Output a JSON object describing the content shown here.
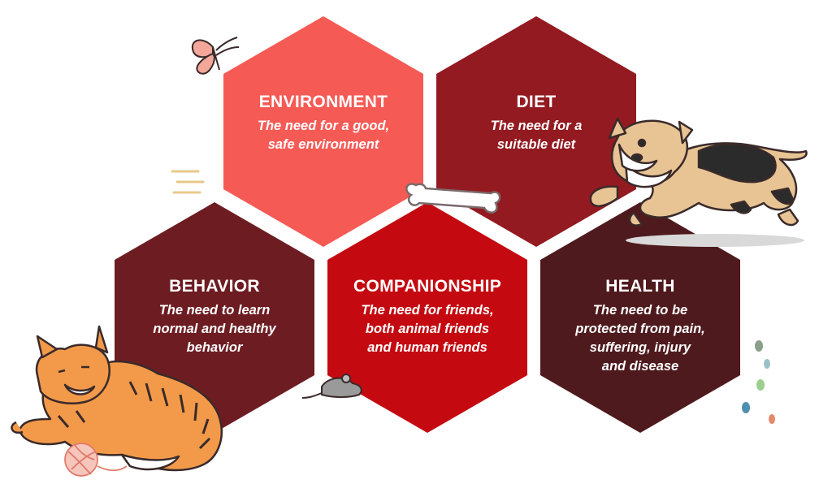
{
  "hexagons": [
    {
      "id": "environment",
      "title": "ENVIRONMENT",
      "description": "The need for a good,\nsafe environment",
      "color": "#f65a55"
    },
    {
      "id": "diet",
      "title": "DIET",
      "description": "The need for a\nsuitable diet",
      "color": "#931a20"
    },
    {
      "id": "behavior",
      "title": "BEHAVIOR",
      "description": "The need to learn\nnormal and healthy\nbehavior",
      "color": "#6d1d22"
    },
    {
      "id": "companionship",
      "title": "COMPANIONSHIP",
      "description": "The need for friends,\nboth animal friends\nand human friends",
      "color": "#c40a10"
    },
    {
      "id": "health",
      "title": "HEALTH",
      "description": "The need to be\nprotected from pain,\nsuffering, injury\nand disease",
      "color": "#4f1a1e"
    }
  ],
  "illustrations": {
    "butterfly": "butterfly-icon",
    "bone": "bone-icon",
    "dog": "dog-illustration",
    "cat": "cat-illustration",
    "mouse": "mouse-icon",
    "yarn": "yarn-ball-icon"
  }
}
